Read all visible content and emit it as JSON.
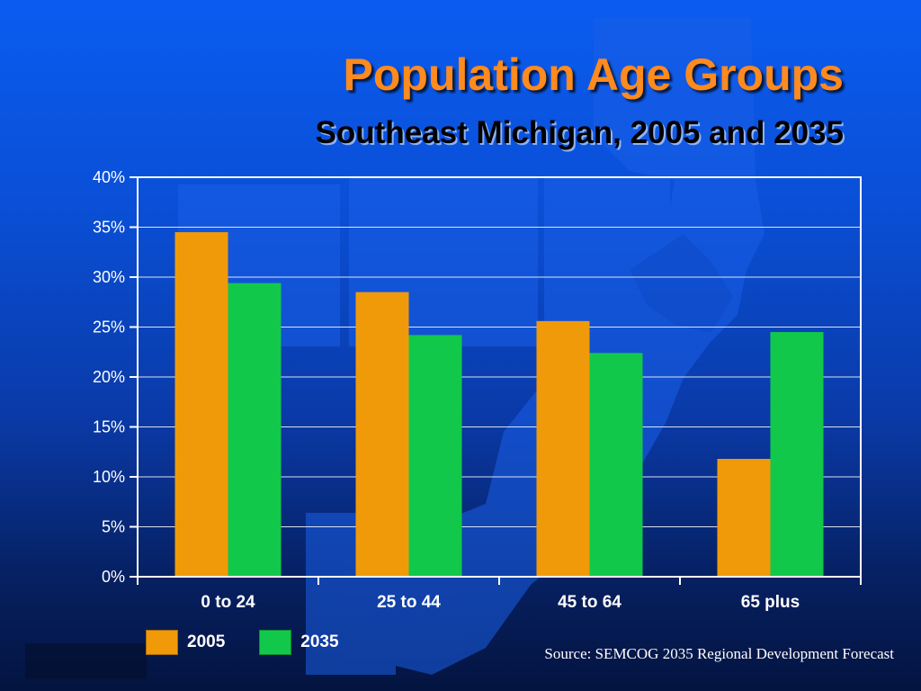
{
  "slide": {
    "title": "Population Age Groups",
    "subtitle": "Southeast Michigan, 2005 and 2035",
    "source": "Source: SEMCOG 2035 Regional Development Forecast"
  },
  "colors": {
    "series_2005": "#f09a0a",
    "series_2035": "#12c84a",
    "axis": "#ffffff",
    "gridline": "#ffffff"
  },
  "chart_data": {
    "type": "bar",
    "title": "Population Age Groups",
    "subtitle": "Southeast Michigan, 2005 and 2035",
    "xlabel": "",
    "ylabel": "",
    "categories": [
      "0 to 24",
      "25 to 44",
      "45 to 64",
      "65 plus"
    ],
    "series": [
      {
        "name": "2005",
        "values": [
          34.5,
          28.5,
          25.6,
          11.8
        ]
      },
      {
        "name": "2035",
        "values": [
          29.4,
          24.2,
          22.4,
          24.5
        ]
      }
    ],
    "ylim": [
      0,
      40
    ],
    "yticks": [
      0,
      5,
      10,
      15,
      20,
      25,
      30,
      35,
      40
    ],
    "ytick_labels": [
      "0%",
      "5%",
      "10%",
      "15%",
      "20%",
      "25%",
      "30%",
      "35%",
      "40%"
    ],
    "grid": true,
    "legend_position": "bottom-left"
  }
}
